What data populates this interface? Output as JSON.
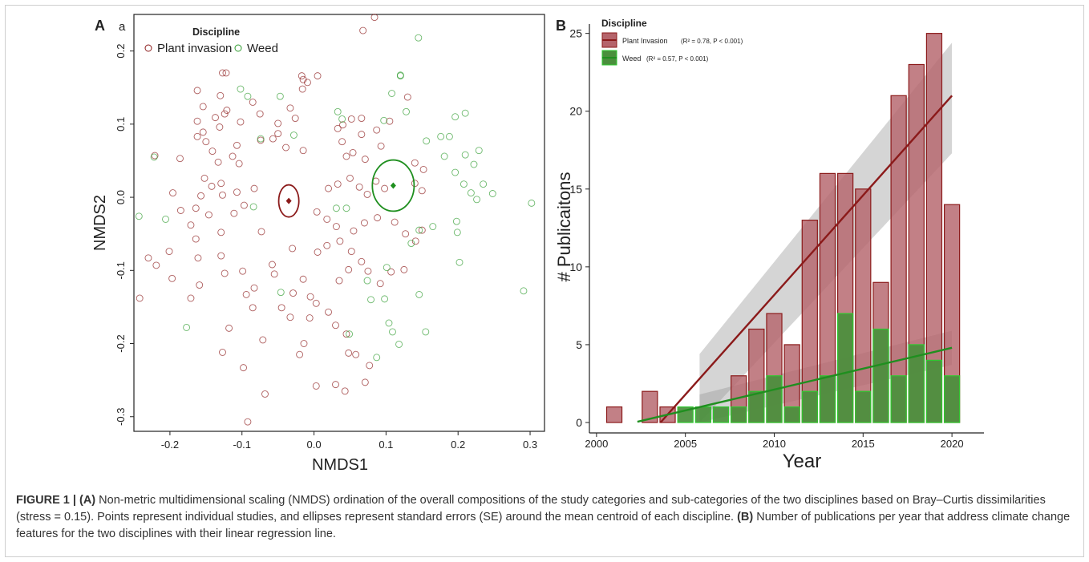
{
  "chart_data": [
    {
      "type": "scatter",
      "panel_letter": "A",
      "panel_sub": "a",
      "xlabel": "NMDS1",
      "ylabel": "NMDS2",
      "xlim": [
        -0.25,
        0.32
      ],
      "ylim": [
        -0.32,
        0.25
      ],
      "xticks": [
        "-0.2",
        "-0.1",
        "0.0",
        "0.1",
        "0.2",
        "0.3"
      ],
      "yticks": [
        "-0.3",
        "-0.2",
        "-0.1",
        "0.0",
        "0.1",
        "0.2"
      ],
      "legend_title": "Discipline",
      "legend_placement": "top-left",
      "series": [
        {
          "name": "Plant invasion",
          "color": "#8b1a1a",
          "centroid": [
            -0.035,
            -0.005
          ],
          "ellipse_radius": [
            0.014,
            0.022
          ],
          "points": [
            [
              0.084,
              0.246
            ],
            [
              0.068,
              0.228
            ],
            [
              -0.127,
              0.17
            ],
            [
              -0.122,
              0.17
            ],
            [
              -0.017,
              0.166
            ],
            [
              0.005,
              0.166
            ],
            [
              -0.015,
              0.161
            ],
            [
              -0.009,
              0.157
            ],
            [
              -0.016,
              0.148
            ],
            [
              0.13,
              0.137
            ],
            [
              -0.162,
              0.146
            ],
            [
              -0.13,
              0.139
            ],
            [
              -0.154,
              0.124
            ],
            [
              -0.121,
              0.119
            ],
            [
              -0.085,
              0.13
            ],
            [
              -0.075,
              0.114
            ],
            [
              -0.124,
              0.114
            ],
            [
              -0.137,
              0.109
            ],
            [
              -0.162,
              0.104
            ],
            [
              -0.102,
              0.103
            ],
            [
              -0.131,
              0.096
            ],
            [
              -0.154,
              0.089
            ],
            [
              -0.162,
              0.083
            ],
            [
              -0.15,
              0.076
            ],
            [
              -0.107,
              0.071
            ],
            [
              -0.141,
              0.063
            ],
            [
              -0.221,
              0.057
            ],
            [
              -0.186,
              0.053
            ],
            [
              -0.113,
              0.056
            ],
            [
              -0.133,
              0.048
            ],
            [
              -0.104,
              0.046
            ],
            [
              -0.033,
              0.122
            ],
            [
              -0.026,
              0.108
            ],
            [
              -0.05,
              0.101
            ],
            [
              -0.05,
              0.087
            ],
            [
              -0.057,
              0.08
            ],
            [
              -0.074,
              0.078
            ],
            [
              -0.039,
              0.068
            ],
            [
              -0.015,
              0.064
            ],
            [
              0.052,
              0.107
            ],
            [
              0.066,
              0.108
            ],
            [
              0.105,
              0.104
            ],
            [
              0.04,
              0.099
            ],
            [
              0.033,
              0.094
            ],
            [
              0.087,
              0.092
            ],
            [
              0.066,
              0.086
            ],
            [
              0.039,
              0.076
            ],
            [
              0.093,
              0.07
            ],
            [
              0.054,
              0.061
            ],
            [
              0.071,
              0.052
            ],
            [
              0.045,
              0.056
            ],
            [
              -0.152,
              0.026
            ],
            [
              -0.142,
              0.015
            ],
            [
              -0.157,
              0.002
            ],
            [
              -0.129,
              0.019
            ],
            [
              -0.127,
              0.003
            ],
            [
              -0.107,
              0.007
            ],
            [
              -0.083,
              0.012
            ],
            [
              -0.097,
              -0.011
            ],
            [
              -0.111,
              -0.022
            ],
            [
              -0.164,
              -0.015
            ],
            [
              -0.196,
              0.006
            ],
            [
              -0.185,
              -0.018
            ],
            [
              -0.171,
              -0.038
            ],
            [
              -0.146,
              -0.024
            ],
            [
              -0.164,
              -0.057
            ],
            [
              -0.129,
              -0.048
            ],
            [
              -0.201,
              -0.074
            ],
            [
              -0.219,
              -0.093
            ],
            [
              -0.23,
              -0.083
            ],
            [
              -0.161,
              -0.083
            ],
            [
              -0.129,
              -0.08
            ],
            [
              -0.124,
              -0.104
            ],
            [
              -0.099,
              -0.101
            ],
            [
              -0.083,
              -0.124
            ],
            [
              -0.094,
              -0.133
            ],
            [
              -0.159,
              -0.12
            ],
            [
              -0.197,
              -0.111
            ],
            [
              -0.171,
              -0.138
            ],
            [
              -0.242,
              -0.138
            ],
            [
              -0.073,
              -0.047
            ],
            [
              -0.03,
              -0.07
            ],
            [
              -0.058,
              -0.092
            ],
            [
              -0.055,
              -0.105
            ],
            [
              -0.015,
              -0.112
            ],
            [
              -0.029,
              -0.131
            ],
            [
              -0.045,
              -0.151
            ],
            [
              -0.033,
              -0.164
            ],
            [
              -0.085,
              -0.151
            ],
            [
              -0.071,
              -0.195
            ],
            [
              -0.098,
              -0.233
            ],
            [
              0.005,
              -0.075
            ],
            [
              0.018,
              -0.066
            ],
            [
              0.036,
              -0.06
            ],
            [
              0.052,
              -0.074
            ],
            [
              0.066,
              -0.088
            ],
            [
              0.048,
              -0.099
            ],
            [
              0.035,
              -0.114
            ],
            [
              0.075,
              -0.101
            ],
            [
              0.092,
              -0.118
            ],
            [
              0.107,
              -0.102
            ],
            [
              0.125,
              -0.099
            ],
            [
              0.02,
              0.012
            ],
            [
              0.033,
              0.018
            ],
            [
              0.05,
              0.026
            ],
            [
              0.063,
              0.014
            ],
            [
              0.074,
              0.004
            ],
            [
              0.086,
              0.022
            ],
            [
              0.098,
              0.012
            ],
            [
              0.14,
              0.019
            ],
            [
              0.14,
              0.047
            ],
            [
              0.152,
              0.038
            ],
            [
              0.15,
              0.009
            ],
            [
              0.004,
              -0.02
            ],
            [
              0.018,
              -0.03
            ],
            [
              0.031,
              -0.04
            ],
            [
              0.055,
              -0.046
            ],
            [
              0.07,
              -0.035
            ],
            [
              0.088,
              -0.028
            ],
            [
              0.112,
              -0.034
            ],
            [
              0.127,
              -0.05
            ],
            [
              0.141,
              -0.06
            ],
            [
              0.15,
              -0.045
            ],
            [
              -0.005,
              -0.136
            ],
            [
              0.003,
              -0.145
            ],
            [
              0.02,
              -0.157
            ],
            [
              0.03,
              -0.175
            ],
            [
              0.045,
              -0.187
            ],
            [
              0.048,
              -0.213
            ],
            [
              0.058,
              -0.215
            ],
            [
              0.077,
              -0.23
            ],
            [
              0.071,
              -0.253
            ],
            [
              0.03,
              -0.256
            ],
            [
              0.043,
              -0.265
            ],
            [
              -0.006,
              -0.165
            ],
            [
              -0.014,
              -0.2
            ],
            [
              -0.02,
              -0.215
            ],
            [
              0.003,
              -0.258
            ],
            [
              -0.068,
              -0.269
            ],
            [
              -0.118,
              -0.179
            ],
            [
              -0.127,
              -0.212
            ],
            [
              -0.092,
              -0.307
            ]
          ]
        },
        {
          "name": "Weed",
          "color": "#2e9b2e",
          "centroid": [
            0.11,
            0.016
          ],
          "ellipse_radius": [
            0.029,
            0.035
          ],
          "points": [
            [
              0.145,
              0.218
            ],
            [
              0.12,
              0.167
            ],
            [
              0.12,
              0.166
            ],
            [
              0.108,
              0.142
            ],
            [
              0.128,
              0.117
            ],
            [
              -0.102,
              0.148
            ],
            [
              -0.092,
              0.138
            ],
            [
              -0.047,
              0.138
            ],
            [
              0.033,
              0.117
            ],
            [
              0.039,
              0.107
            ],
            [
              0.097,
              0.105
            ],
            [
              0.196,
              0.11
            ],
            [
              0.21,
              0.115
            ],
            [
              -0.074,
              0.08
            ],
            [
              -0.028,
              0.085
            ],
            [
              0.156,
              0.077
            ],
            [
              0.176,
              0.083
            ],
            [
              0.188,
              0.083
            ],
            [
              0.229,
              0.064
            ],
            [
              0.21,
              0.058
            ],
            [
              0.181,
              0.056
            ],
            [
              -0.222,
              0.055
            ],
            [
              0.222,
              0.045
            ],
            [
              0.196,
              0.034
            ],
            [
              0.208,
              0.018
            ],
            [
              0.218,
              0.006
            ],
            [
              0.235,
              0.018
            ],
            [
              0.248,
              0.005
            ],
            [
              0.226,
              -0.003
            ],
            [
              -0.243,
              -0.026
            ],
            [
              -0.206,
              -0.03
            ],
            [
              -0.084,
              -0.013
            ],
            [
              0.031,
              -0.015
            ],
            [
              0.045,
              -0.015
            ],
            [
              0.198,
              -0.033
            ],
            [
              0.199,
              -0.048
            ],
            [
              0.165,
              -0.04
            ],
            [
              0.146,
              -0.045
            ],
            [
              0.135,
              -0.063
            ],
            [
              0.302,
              -0.008
            ],
            [
              0.291,
              -0.128
            ],
            [
              0.202,
              -0.089
            ],
            [
              0.146,
              -0.133
            ],
            [
              0.101,
              -0.096
            ],
            [
              0.074,
              -0.114
            ],
            [
              0.098,
              -0.139
            ],
            [
              0.079,
              -0.14
            ],
            [
              0.104,
              -0.172
            ],
            [
              -0.177,
              -0.178
            ],
            [
              -0.046,
              -0.13
            ],
            [
              0.109,
              -0.184
            ],
            [
              0.118,
              -0.201
            ],
            [
              0.155,
              -0.184
            ],
            [
              0.087,
              -0.219
            ],
            [
              0.049,
              -0.187
            ]
          ]
        }
      ]
    },
    {
      "type": "bar",
      "panel_letter": "B",
      "xlabel": "Year",
      "ylabel": "# Publicaitons",
      "xlim": [
        1999.6,
        2021.8
      ],
      "ylim": [
        0,
        25.6
      ],
      "xticks": [
        "2000",
        "2005",
        "2010",
        "2015",
        "2020"
      ],
      "yticks": [
        "0",
        "5",
        "10",
        "15",
        "20",
        "25"
      ],
      "legend_title": "Discipline",
      "legend_placement": "top-left",
      "legend": [
        {
          "name": "Plant Invasion",
          "stats": "(R² = 0.78, P < 0.001)"
        },
        {
          "name": "Weed",
          "stats": "(R² = 0.57, P < 0.001)"
        }
      ],
      "categories": [
        2001,
        2003,
        2004,
        2005,
        2006,
        2007,
        2008,
        2009,
        2010,
        2011,
        2012,
        2013,
        2014,
        2015,
        2016,
        2017,
        2018,
        2019,
        2020
      ],
      "series": [
        {
          "name": "Plant Invasion",
          "color": "#b5646b",
          "edge": "#8b1a1a",
          "values": [
            1,
            2,
            1,
            0,
            0,
            0,
            3,
            6,
            7,
            5,
            13,
            16,
            16,
            15,
            9,
            21,
            23,
            25,
            14
          ],
          "trend": {
            "x": [
              2003.6,
              2020
            ],
            "y": [
              0,
              21
            ]
          },
          "band_x": [
            2005.8,
            2020
          ],
          "band_upper": [
            4.4,
            24.4
          ],
          "band_lower": [
            0,
            17.3
          ]
        },
        {
          "name": "Weed",
          "color": "#4a8f3c",
          "edge": "#2fc92f",
          "values": [
            0,
            0,
            0,
            1,
            1,
            1,
            1,
            2,
            3,
            1,
            2,
            3,
            7,
            2,
            6,
            3,
            5,
            4,
            3
          ],
          "trend": {
            "x": [
              2002.3,
              2020
            ],
            "y": [
              0.05,
              4.8
            ]
          },
          "band_x": [
            2005.8,
            2020
          ],
          "band_upper": [
            1.8,
            5.9
          ],
          "band_lower": [
            0,
            3.7
          ]
        }
      ]
    }
  ],
  "caption": {
    "lead": "FIGURE 1 | ",
    "a_label": "(A)",
    "a_text": " Non-metric multidimensional scaling (NMDS) ordination of the overall compositions of the study categories and sub-categories of the two disciplines based on Bray–Curtis dissimilarities (stress = 0.15). Points represent individual studies, and ellipses represent standard errors (SE) around the mean centroid of each discipline. ",
    "b_label": "(B)",
    "b_text": " Number of publications per year that address climate change features for the two disciplines with their linear regression line."
  }
}
